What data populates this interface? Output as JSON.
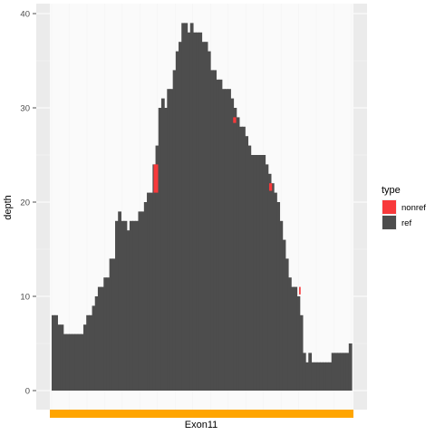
{
  "chart_data": {
    "type": "area",
    "xlabel": "Exon11",
    "ylabel": "depth",
    "ylim": [
      0,
      40
    ],
    "yticks": [
      0,
      10,
      20,
      30,
      40
    ],
    "grid": true,
    "legend": {
      "title": "type",
      "placement": "right",
      "entries": [
        {
          "label": "nonref",
          "color": "#f8393b"
        },
        {
          "label": "ref",
          "color": "#4d4d4d"
        }
      ]
    },
    "exon_track": {
      "label": "Exon11",
      "color": "#ffa500"
    },
    "series": [
      {
        "name": "ref",
        "color": "#4d4d4d",
        "step_values": [
          8,
          8,
          7,
          7,
          6,
          6,
          6,
          6,
          6,
          6,
          6,
          7,
          8,
          8,
          9,
          10,
          11,
          11,
          12,
          12,
          14,
          14,
          18,
          19,
          18,
          18,
          17,
          18,
          18,
          18,
          19,
          19,
          20,
          21,
          21,
          24,
          26,
          30,
          31,
          30,
          32,
          32,
          34,
          36,
          37,
          39,
          39,
          38,
          39,
          38,
          38,
          38,
          37,
          37,
          36,
          34,
          34,
          33,
          33,
          32,
          32,
          32,
          31,
          30,
          29,
          28,
          28,
          27,
          26,
          25,
          25,
          25,
          25,
          25,
          24,
          23,
          22,
          21,
          20,
          18,
          16,
          14,
          12,
          11,
          11,
          10,
          8,
          4,
          3,
          4,
          3,
          3,
          3,
          3,
          3,
          3,
          3,
          4,
          4,
          4,
          4,
          4,
          4,
          5
        ]
      },
      {
        "name": "nonref",
        "color": "#f8393b",
        "segments": [
          {
            "start": 0.34,
            "end": 0.355,
            "from": 21,
            "to": 24
          },
          {
            "start": 0.605,
            "end": 0.615,
            "from": 28.4,
            "to": 29
          },
          {
            "start": 0.725,
            "end": 0.735,
            "from": 21.2,
            "to": 22
          },
          {
            "start": 0.825,
            "end": 0.83,
            "from": 10.2,
            "to": 11
          }
        ]
      }
    ]
  }
}
